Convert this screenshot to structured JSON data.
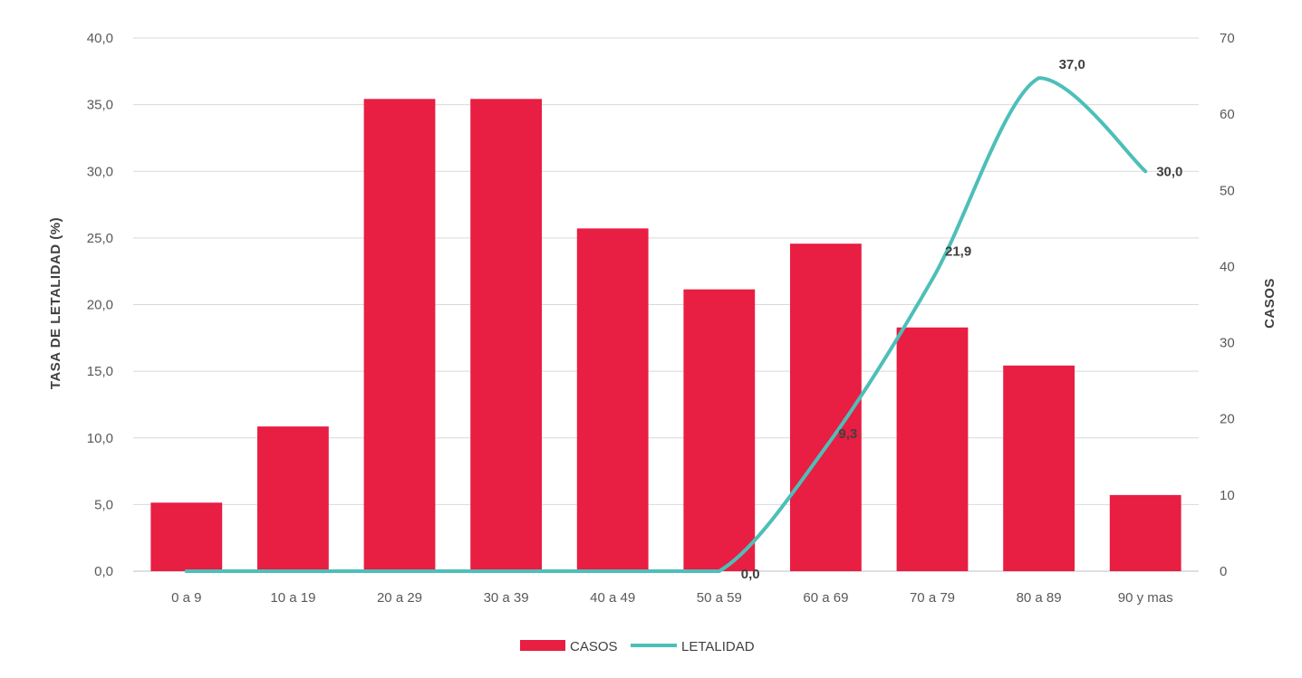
{
  "chart_data": {
    "type": "bar",
    "categories": [
      "0 a 9",
      "10 a 19",
      "20 a 29",
      "30 a 39",
      "40 a 49",
      "50 a 59",
      "60 a 69",
      "70 a 79",
      "80 a 89",
      "90 y mas"
    ],
    "series": [
      {
        "name": "CASOS",
        "type": "bar",
        "axis": "right",
        "color": "#E81E42",
        "values": [
          9,
          19,
          62,
          62,
          45,
          37,
          43,
          32,
          27,
          10
        ]
      },
      {
        "name": "LETALIDAD",
        "type": "line",
        "axis": "left",
        "color": "#4DBFB9",
        "values": [
          0.0,
          0.0,
          0.0,
          0.0,
          0.0,
          0.0,
          9.3,
          21.9,
          37.0,
          30.0
        ],
        "data_labels": [
          "",
          "",
          "",
          "",
          "",
          "0,0",
          "9,3",
          "21,9",
          "37,0",
          "30,0"
        ]
      }
    ],
    "left_axis": {
      "title": "TASA DE LETALIDAD (%)",
      "range": [
        0,
        40
      ],
      "ticks": [
        "0,0",
        "5,0",
        "10,0",
        "15,0",
        "20,0",
        "25,0",
        "30,0",
        "35,0",
        "40,0"
      ]
    },
    "right_axis": {
      "title": "CASOS",
      "range": [
        0,
        70
      ],
      "ticks": [
        "0",
        "10",
        "20",
        "30",
        "40",
        "50",
        "60",
        "70"
      ]
    },
    "xlabel": "",
    "grid": true,
    "legend": {
      "position": "bottom-center",
      "entries": [
        "CASOS",
        "LETALIDAD"
      ]
    }
  }
}
